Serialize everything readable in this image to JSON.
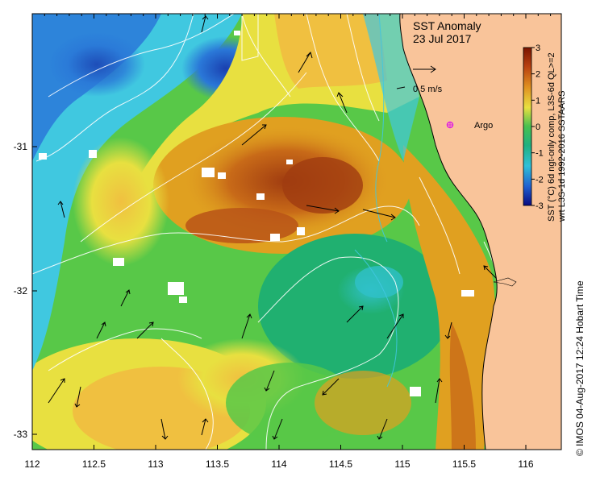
{
  "title": "SST Anomaly",
  "date": "23 Jul 2017",
  "scale_label": "0.5 m/s",
  "argo_label": "Argo",
  "credit": "© IMOS 04-Aug-2017 12:24 Hobart Time",
  "colorbar": {
    "label_line1": "SST (°C) 6d ngt-only comp, L3S-6d QL>=2",
    "label_line2": "wrt L3S-1d 1992-2016 SSTAARS",
    "ticks": [
      "3",
      "2",
      "1",
      "0",
      "-1",
      "-2",
      "-3"
    ],
    "colors": [
      "#8b1a00",
      "#c8501e",
      "#e0a020",
      "#e8e03c",
      "#6cd048",
      "#20b070",
      "#30c0c8",
      "#2c8ce0",
      "#2040c0",
      "#0a0a80"
    ]
  },
  "axes": {
    "x_ticks": [
      "112",
      "112.5",
      "113",
      "113.5",
      "114",
      "114.5",
      "115",
      "115.5",
      "116"
    ],
    "y_ticks": [
      "-31",
      "-32",
      "-33"
    ]
  },
  "colors": {
    "land": "#f9c49a",
    "warm": "#c86a18",
    "hot": "#a03c10",
    "mild": "#f0c040",
    "yellow": "#e8e840",
    "green": "#58c848",
    "teal": "#30b8a8",
    "cyan": "#40c8e0",
    "blue": "#2a78d8",
    "deep": "#1a40b0",
    "argo": "#e020e0"
  }
}
